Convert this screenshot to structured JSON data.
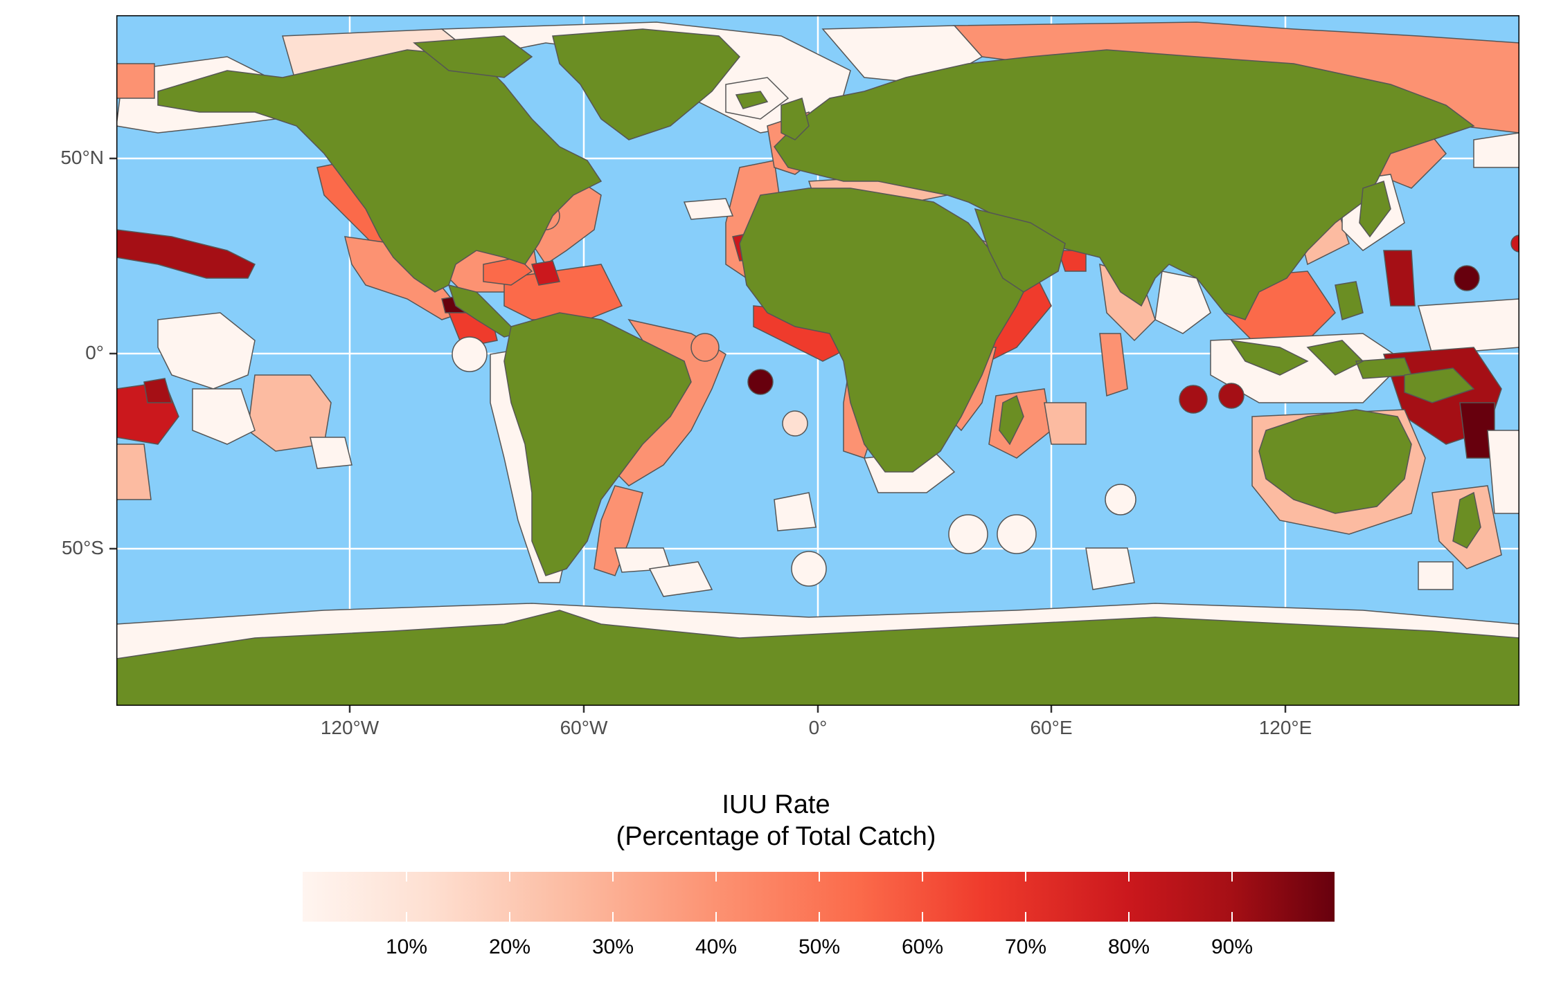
{
  "map": {
    "ocean_color": "#87cefa",
    "land_color": "#6b8e23",
    "border_color": "#555555",
    "x_axis_labels": [
      "120°W",
      "60°W",
      "0°",
      "60°E",
      "120°E"
    ],
    "y_axis_labels": [
      "50°N",
      "0°",
      "50°S"
    ]
  },
  "legend": {
    "title_line1": "IUU Rate",
    "title_line2": "(Percentage of Total Catch)",
    "tick_labels": [
      "10%",
      "20%",
      "30%",
      "40%",
      "50%",
      "60%",
      "70%",
      "80%",
      "90%"
    ],
    "scale_colors": [
      "#fff5f0",
      "#fee0d2",
      "#fcbba1",
      "#fc9272",
      "#fb6a4a",
      "#ef3b2c",
      "#cb181d",
      "#a50f15",
      "#67000d"
    ]
  }
}
